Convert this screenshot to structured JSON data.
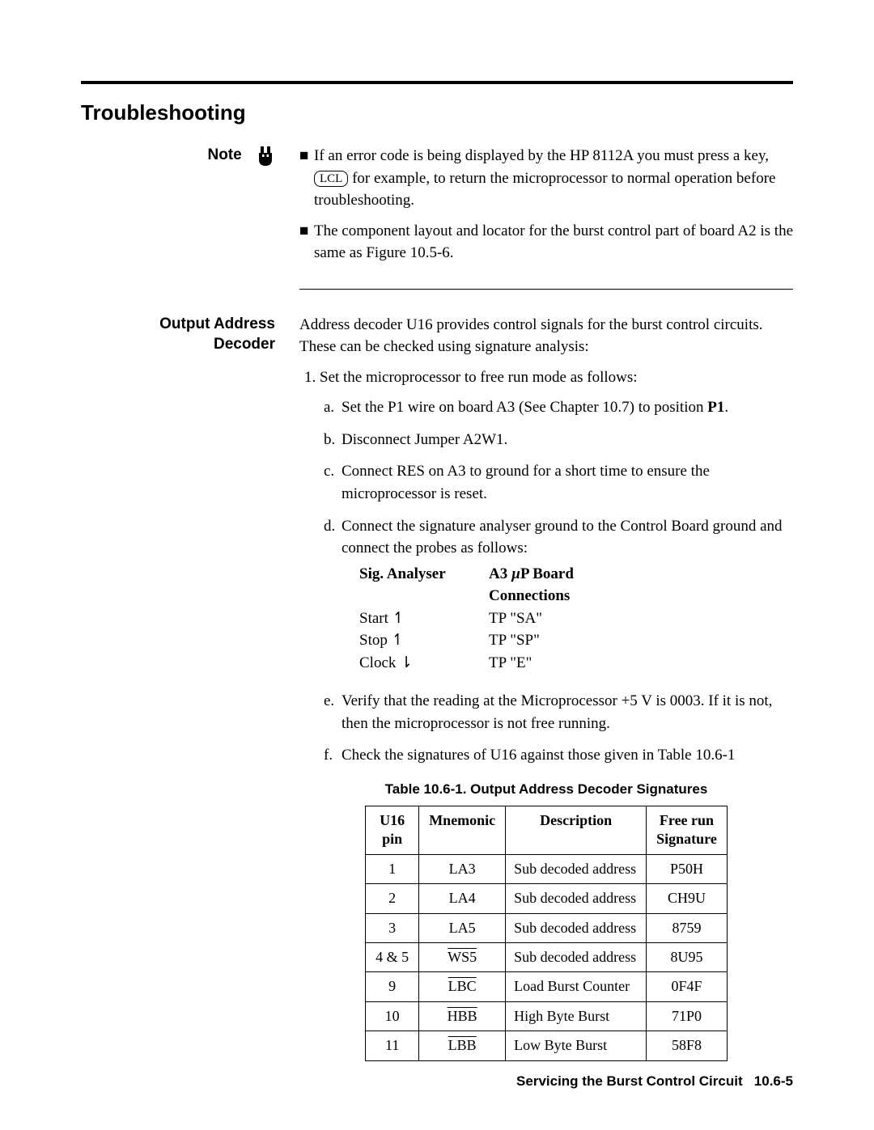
{
  "section_title": "Troubleshooting",
  "note": {
    "label": "Note",
    "bullets": [
      {
        "pre": "If an error code is being displayed by the HP 8112A you must press a key, ",
        "keycap": "LCL",
        "post": " for example, to return the microprocessor to normal operation before troubleshooting."
      },
      {
        "text": "The component layout and locator for the burst control part of board A2 is the same as Figure 10.5-6."
      }
    ]
  },
  "decoder": {
    "heading": "Output Address Decoder",
    "intro": "Address decoder U16 provides control signals for the burst control circuits. These can be checked using signature analysis:",
    "step1": "1. Set the microprocessor to free run mode as follows:",
    "substeps": {
      "a": "Set the P1 wire on board A3 (See Chapter 10.7) to position ",
      "a_bold": "P1",
      "a_post": ".",
      "b": "Disconnect Jumper A2W1.",
      "c": "Connect RES on A3 to ground for a short time to ensure the microprocessor is reset.",
      "d": "Connect the signature analyser ground to the Control Board ground and connect the probes as follows:",
      "sig_header1": "Sig. Analyser",
      "sig_header2": "A3 µP Board Connections",
      "sig_rows": [
        {
          "c1": "Start  ↿",
          "c2": "TP \"SA\""
        },
        {
          "c1": "Stop  ↿",
          "c2": "TP \"SP\""
        },
        {
          "c1": "Clock  ⇂",
          "c2": "TP \"E\""
        }
      ],
      "e": "Verify that the reading at the Microprocessor +5 V is 0003. If it is not, then the microprocessor is not free running.",
      "f": "Check the signatures of U16 against those given in Table 10.6-1"
    }
  },
  "table": {
    "caption": "Table 10.6-1. Output Address Decoder Signatures",
    "headers": [
      "U16 pin",
      "Mnemonic",
      "Description",
      "Free run Signature"
    ],
    "rows": [
      {
        "pin": "1",
        "mnemonic": "LA3",
        "overline": false,
        "desc": "Sub decoded address",
        "sig": "P50H"
      },
      {
        "pin": "2",
        "mnemonic": "LA4",
        "overline": false,
        "desc": "Sub decoded address",
        "sig": "CH9U"
      },
      {
        "pin": "3",
        "mnemonic": "LA5",
        "overline": false,
        "desc": "Sub decoded address",
        "sig": "8759"
      },
      {
        "pin": "4 & 5",
        "mnemonic": "WS5",
        "overline": true,
        "desc": "Sub decoded address",
        "sig": "8U95"
      },
      {
        "pin": "9",
        "mnemonic": "LBC",
        "overline": true,
        "desc": "Load Burst Counter",
        "sig": "0F4F"
      },
      {
        "pin": "10",
        "mnemonic": "HBB",
        "overline": true,
        "desc": "High Byte Burst",
        "sig": "71P0"
      },
      {
        "pin": "11",
        "mnemonic": "LBB",
        "overline": true,
        "desc": "Low Byte Burst",
        "sig": "58F8"
      }
    ]
  },
  "footer": {
    "text": "Servicing the Burst Control Circuit",
    "page": "10.6-5"
  }
}
